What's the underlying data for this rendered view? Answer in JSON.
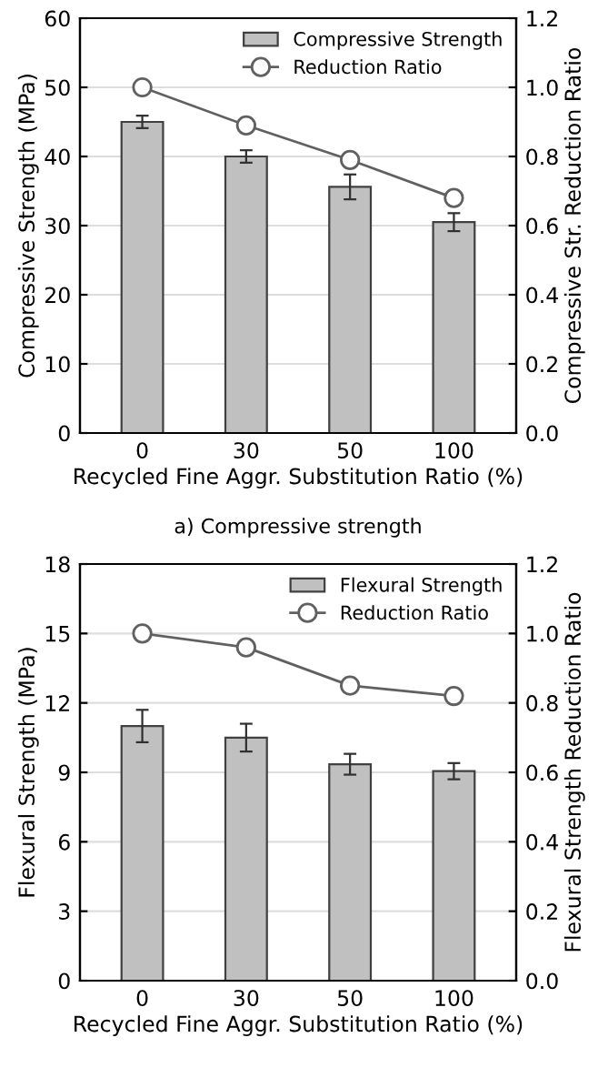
{
  "chart_data": [
    {
      "type": "bar",
      "categories": [
        "0",
        "30",
        "50",
        "100"
      ],
      "xlabel": "Recycled Fine Aggr. Substitution Ratio (%)",
      "ylabel": "Compressive Strength (MPa)",
      "y2label": "Compressive Str. Reduction Ratio",
      "ylim": [
        0,
        60
      ],
      "yticks": [
        0,
        10,
        20,
        30,
        40,
        50,
        60
      ],
      "y2lim": [
        0,
        1.2
      ],
      "y2ticks": [
        {
          "value": 0,
          "label": "0.0"
        },
        {
          "value": 0.2,
          "label": "0.2"
        },
        {
          "value": 0.4,
          "label": "0.4"
        },
        {
          "value": 0.6,
          "label": "0.6"
        },
        {
          "value": 0.8,
          "label": "0.8"
        },
        {
          "value": 1.0,
          "label": "1.0"
        },
        {
          "value": 1.2,
          "label": "1.2"
        }
      ],
      "grid": "y",
      "legend": "top right",
      "annotations": [
        "a) Compressive strength"
      ],
      "series": [
        {
          "name": "Compressive Strength",
          "color": "#c0c0c0",
          "values": [
            45.0,
            40.0,
            35.6,
            30.5
          ],
          "errors": [
            0.9,
            0.9,
            1.8,
            1.3
          ]
        },
        {
          "name": "Reduction Ratio",
          "type": "line",
          "axis": "y2",
          "color": "#606060",
          "marker": "circle",
          "values": [
            1.0,
            0.89,
            0.79,
            0.68
          ]
        }
      ]
    },
    {
      "type": "bar",
      "categories": [
        "0",
        "30",
        "50",
        "100"
      ],
      "xlabel": "Recycled Fine Aggr. Substitution Ratio (%)",
      "ylabel": "Flexural Strength (MPa)",
      "y2label": "Flexural Strength Reduction Ratio",
      "ylim": [
        0,
        18
      ],
      "yticks": [
        0,
        3,
        6,
        9,
        12,
        15,
        18
      ],
      "y2lim": [
        0,
        1.2
      ],
      "y2ticks": [
        {
          "value": 0,
          "label": "0.0"
        },
        {
          "value": 0.2,
          "label": "0.2"
        },
        {
          "value": 0.4,
          "label": "0.4"
        },
        {
          "value": 0.6,
          "label": "0.6"
        },
        {
          "value": 0.8,
          "label": "0.8"
        },
        {
          "value": 1.0,
          "label": "1.0"
        },
        {
          "value": 1.2,
          "label": "1.2"
        }
      ],
      "grid": "y",
      "legend": "top right",
      "series": [
        {
          "name": "Flexural Strength",
          "color": "#c0c0c0",
          "values": [
            11.0,
            10.5,
            9.35,
            9.05
          ],
          "errors": [
            0.7,
            0.6,
            0.45,
            0.35
          ]
        },
        {
          "name": "Reduction Ratio",
          "type": "line",
          "axis": "y2",
          "color": "#606060",
          "marker": "circle",
          "values": [
            1.0,
            0.96,
            0.85,
            0.82
          ]
        }
      ]
    }
  ]
}
